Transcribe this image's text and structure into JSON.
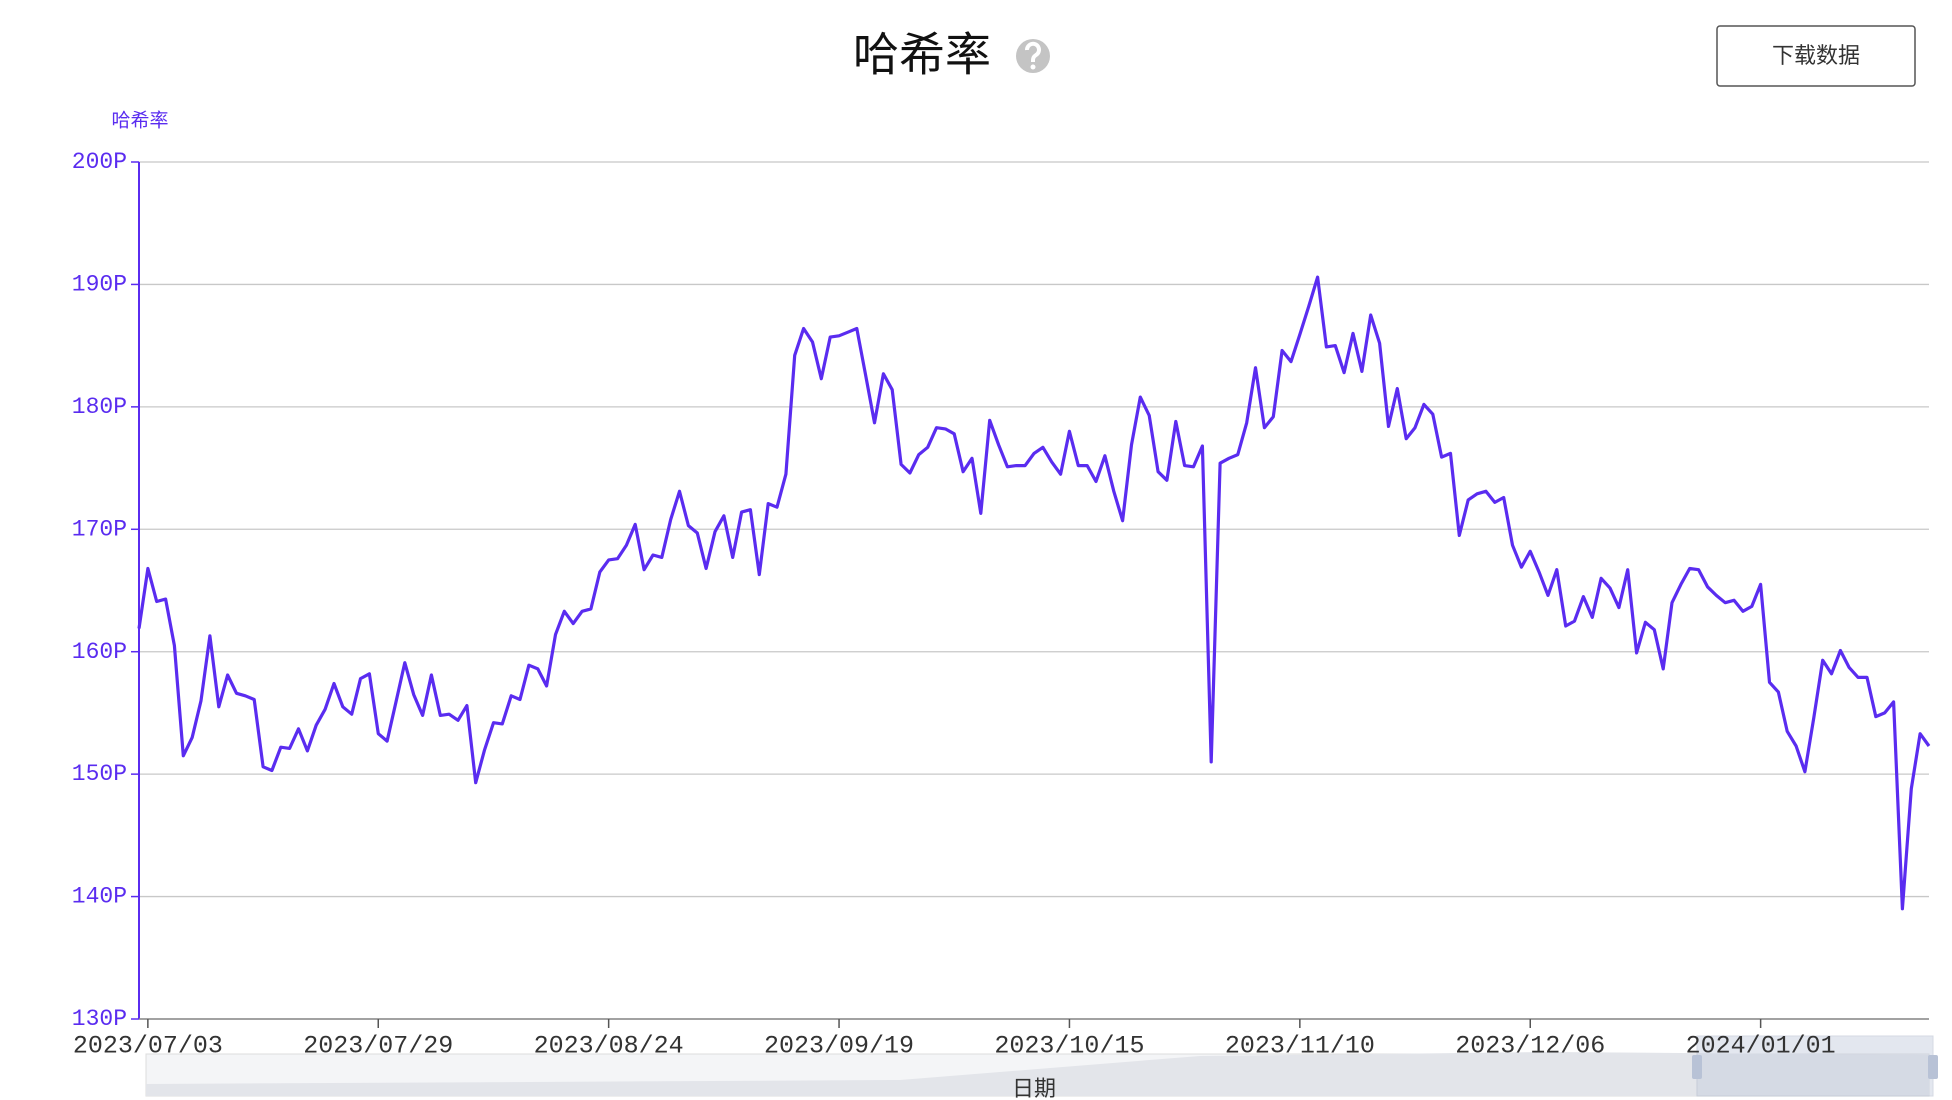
{
  "chart_data": {
    "type": "line",
    "title": "哈希率",
    "button": "下载数据",
    "y_label": "哈希率",
    "x_label": "日期",
    "x": [
      "2023/07/02",
      "2023/07/03",
      "2023/07/04",
      "2023/07/05",
      "2023/07/06",
      "2023/07/07",
      "2023/07/08",
      "2023/07/09",
      "2023/07/10",
      "2023/07/11",
      "2023/07/12",
      "2023/07/13",
      "2023/07/14",
      "2023/07/15",
      "2023/07/16",
      "2023/07/17",
      "2023/07/18",
      "2023/07/19",
      "2023/07/20",
      "2023/07/21",
      "2023/07/22",
      "2023/07/23",
      "2023/07/24",
      "2023/07/25",
      "2023/07/26",
      "2023/07/27",
      "2023/07/28",
      "2023/07/29",
      "2023/07/30",
      "2023/07/31",
      "2023/08/01",
      "2023/08/02",
      "2023/08/03",
      "2023/08/04",
      "2023/08/05",
      "2023/08/06",
      "2023/08/07",
      "2023/08/08",
      "2023/08/09",
      "2023/08/10",
      "2023/08/11",
      "2023/08/12",
      "2023/08/13",
      "2023/08/14",
      "2023/08/15",
      "2023/08/16",
      "2023/08/17",
      "2023/08/18",
      "2023/08/19",
      "2023/08/20",
      "2023/08/21",
      "2023/08/22",
      "2023/08/23",
      "2023/08/24",
      "2023/08/25",
      "2023/08/26",
      "2023/08/27",
      "2023/08/28",
      "2023/08/29",
      "2023/08/30",
      "2023/08/31",
      "2023/09/01",
      "2023/09/02",
      "2023/09/03",
      "2023/09/04",
      "2023/09/05",
      "2023/09/06",
      "2023/09/07",
      "2023/09/08",
      "2023/09/09",
      "2023/09/10",
      "2023/09/11",
      "2023/09/12",
      "2023/09/13",
      "2023/09/14",
      "2023/09/15",
      "2023/09/16",
      "2023/09/17",
      "2023/09/18",
      "2023/09/19",
      "2023/09/20",
      "2023/09/21",
      "2023/09/22",
      "2023/09/23",
      "2023/09/24",
      "2023/09/25",
      "2023/09/26",
      "2023/09/27",
      "2023/09/28",
      "2023/09/29",
      "2023/09/30",
      "2023/10/01",
      "2023/10/02",
      "2023/10/03",
      "2023/10/04",
      "2023/10/05",
      "2023/10/06",
      "2023/10/07",
      "2023/10/08",
      "2023/10/09",
      "2023/10/10",
      "2023/10/11",
      "2023/10/12",
      "2023/10/13",
      "2023/10/14",
      "2023/10/15",
      "2023/10/16",
      "2023/10/17",
      "2023/10/18",
      "2023/10/19",
      "2023/10/20",
      "2023/10/21",
      "2023/10/22",
      "2023/10/23",
      "2023/10/24",
      "2023/10/25",
      "2023/10/26",
      "2023/10/27",
      "2023/10/28",
      "2023/10/29",
      "2023/10/30",
      "2023/10/31",
      "2023/11/01",
      "2023/11/02",
      "2023/11/03",
      "2023/11/04",
      "2023/11/05",
      "2023/11/06",
      "2023/11/07",
      "2023/11/08",
      "2023/11/09",
      "2023/11/10",
      "2023/11/11",
      "2023/11/12",
      "2023/11/13",
      "2023/11/14",
      "2023/11/15",
      "2023/11/16",
      "2023/11/17",
      "2023/11/18",
      "2023/11/19",
      "2023/11/20",
      "2023/11/21",
      "2023/11/22",
      "2023/11/23",
      "2023/11/24",
      "2023/11/25",
      "2023/11/26",
      "2023/11/27",
      "2023/11/28",
      "2023/11/29",
      "2023/11/30",
      "2023/12/01",
      "2023/12/02",
      "2023/12/03",
      "2023/12/04",
      "2023/12/05",
      "2023/12/06",
      "2023/12/07",
      "2023/12/08",
      "2023/12/09",
      "2023/12/10",
      "2023/12/11",
      "2023/12/12",
      "2023/12/13",
      "2023/12/14",
      "2023/12/15",
      "2023/12/16",
      "2023/12/17",
      "2023/12/18",
      "2023/12/19",
      "2023/12/20",
      "2023/12/21",
      "2023/12/22",
      "2023/12/23",
      "2023/12/24",
      "2023/12/25",
      "2023/12/26",
      "2023/12/27",
      "2023/12/28",
      "2023/12/29",
      "2023/12/30",
      "2023/12/31",
      "2024/01/01",
      "2024/01/02",
      "2024/01/03",
      "2024/01/04",
      "2024/01/05",
      "2024/01/06",
      "2024/01/07",
      "2024/01/08",
      "2024/01/09",
      "2024/01/10",
      "2024/01/11",
      "2024/01/12",
      "2024/01/13",
      "2024/01/14",
      "2024/01/15",
      "2024/01/16",
      "2024/01/17",
      "2024/01/18",
      "2024/01/19",
      "2024/01/20"
    ],
    "series": [
      {
        "name": "哈希率",
        "color": "#5a2cf0",
        "values": [
          161.9,
          166.8,
          164.1,
          164.3,
          160.5,
          151.5,
          153,
          156,
          161.3,
          155.5,
          158.1,
          156.6,
          156.4,
          156.1,
          150.6,
          150.3,
          152.2,
          152.1,
          153.7,
          151.9,
          154,
          155.3,
          157.4,
          155.5,
          154.9,
          157.8,
          158.2,
          153.3,
          152.7,
          155.9,
          159.1,
          156.5,
          154.8,
          158.1,
          154.8,
          154.9,
          154.4,
          155.6,
          149.3,
          152,
          154.2,
          154.1,
          156.4,
          156.1,
          158.9,
          158.6,
          157.2,
          161.4,
          163.3,
          162.3,
          163.3,
          163.5,
          166.5,
          167.5,
          167.6,
          168.7,
          170.4,
          166.7,
          167.9,
          167.7,
          170.8,
          173.1,
          170.3,
          169.7,
          166.8,
          169.8,
          171.1,
          167.7,
          171.4,
          171.6,
          166.3,
          172.1,
          171.8,
          174.5,
          184.2,
          186.4,
          185.3,
          182.3,
          185.7,
          185.8,
          186.1,
          186.4,
          182.6,
          178.7,
          182.7,
          181.4,
          175.3,
          174.6,
          176.1,
          176.7,
          178.3,
          178.2,
          177.8,
          174.7,
          175.8,
          171.3,
          178.9,
          176.9,
          175.1,
          175.2,
          175.2,
          176.2,
          176.7,
          175.5,
          174.5,
          178,
          175.2,
          175.2,
          173.9,
          176,
          173.1,
          170.7,
          176.9,
          180.8,
          179.3,
          174.7,
          174,
          178.8,
          175.2,
          175.1,
          176.8,
          151,
          175.4,
          175.8,
          176.1,
          178.7,
          183.2,
          178.3,
          179.2,
          184.6,
          183.7,
          185.9,
          188.2,
          190.6,
          184.9,
          185,
          182.8,
          186,
          182.9,
          187.5,
          185.2,
          178.4,
          181.5,
          177.4,
          178.3,
          180.2,
          179.4,
          175.9,
          176.2,
          169.5,
          172.4,
          172.9,
          173.1,
          172.2,
          172.6,
          168.7,
          166.9,
          168.2,
          166.5,
          164.6,
          166.7,
          162.1,
          162.5,
          164.5,
          162.8,
          166,
          165.2,
          163.6,
          166.7,
          159.9,
          162.4,
          161.8,
          158.6,
          164,
          165.5,
          166.8,
          166.7,
          165.3,
          164.6,
          164,
          164.2,
          163.3,
          163.7,
          165.5,
          157.5,
          156.7,
          153.5,
          152.3,
          150.2,
          154.6,
          159.3,
          158.2,
          160.1,
          158.7,
          157.9,
          157.9,
          154.7,
          155,
          155.9,
          139,
          148.8,
          153.3,
          152.3
        ]
      }
    ],
    "xlim": [
      "2023/07/02",
      "2024/01/20"
    ],
    "xticks": [
      "2023/07/03",
      "2023/07/29",
      "2023/08/24",
      "2023/09/19",
      "2023/10/15",
      "2023/11/10",
      "2023/12/06",
      "2024/01/01"
    ],
    "ylim": [
      130,
      200
    ],
    "yticks": [
      {
        "value": 130,
        "label": "130P"
      },
      {
        "value": 140,
        "label": "140P"
      },
      {
        "value": 150,
        "label": "150P"
      },
      {
        "value": 160,
        "label": "160P"
      },
      {
        "value": 170,
        "label": "170P"
      },
      {
        "value": 180,
        "label": "180P"
      },
      {
        "value": 190,
        "label": "190P"
      },
      {
        "value": 200,
        "label": "200P"
      }
    ],
    "grid": true
  }
}
